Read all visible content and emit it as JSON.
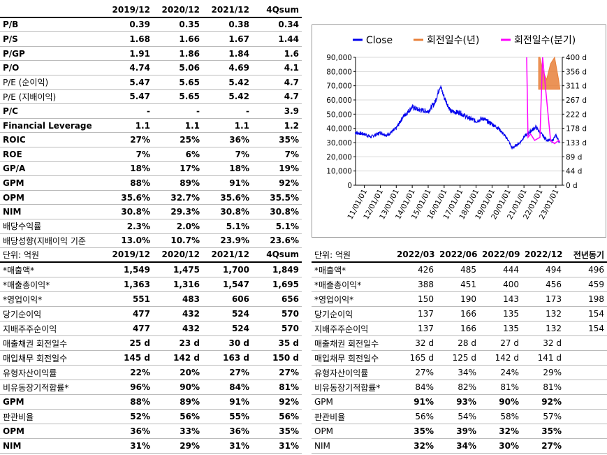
{
  "valuation": {
    "headers": [
      "",
      "2019/12",
      "2020/12",
      "2021/12",
      "4Qsum"
    ],
    "rows": [
      {
        "label": "P/B",
        "values": [
          "0.39",
          "0.35",
          "0.38",
          "0.34"
        ]
      },
      {
        "label": "P/S",
        "values": [
          "1.68",
          "1.66",
          "1.67",
          "1.44"
        ]
      },
      {
        "label": "P/GP",
        "values": [
          "1.91",
          "1.86",
          "1.84",
          "1.6"
        ]
      },
      {
        "label": "P/O",
        "values": [
          "4.74",
          "5.06",
          "4.69",
          "4.1"
        ]
      },
      {
        "label": "P/E (순이익)",
        "values": [
          "5.47",
          "5.65",
          "5.42",
          "4.7"
        ]
      },
      {
        "label": "P/E (지배이익)",
        "values": [
          "5.47",
          "5.65",
          "5.42",
          "4.7"
        ]
      },
      {
        "label": "P/C",
        "values": [
          "-",
          "-",
          "-",
          "3.9"
        ]
      },
      {
        "label": "Financial Leverage",
        "values": [
          "1.1",
          "1.1",
          "1.1",
          "1.2"
        ]
      },
      {
        "label": "ROIC",
        "values": [
          "27%",
          "25%",
          "36%",
          "35%"
        ]
      },
      {
        "label": "ROE",
        "values": [
          "7%",
          "6%",
          "7%",
          "7%"
        ]
      },
      {
        "label": "GP/A",
        "values": [
          "18%",
          "17%",
          "18%",
          "19%"
        ]
      },
      {
        "label": "GPM",
        "values": [
          "88%",
          "89%",
          "91%",
          "92%"
        ]
      },
      {
        "label": "OPM",
        "values": [
          "35.6%",
          "32.7%",
          "35.6%",
          "35.5%"
        ]
      },
      {
        "label": "NIM",
        "values": [
          "30.8%",
          "29.3%",
          "30.8%",
          "30.8%"
        ]
      },
      {
        "label": "배당수익률",
        "values": [
          "2.3%",
          "2.0%",
          "5.1%",
          "5.1%"
        ]
      },
      {
        "label": "배당성향(지배이익 기준",
        "values": [
          "13.0%",
          "10.7%",
          "23.9%",
          "23.6%"
        ]
      }
    ]
  },
  "annual": {
    "headers": [
      "단위: 억원",
      "2019/12",
      "2020/12",
      "2021/12",
      "4Qsum"
    ],
    "rows": [
      {
        "label": "*매출액*",
        "values": [
          "1,549",
          "1,475",
          "1,700",
          "1,849"
        ]
      },
      {
        "label": "*매출총이익*",
        "values": [
          "1,363",
          "1,316",
          "1,547",
          "1,695"
        ]
      },
      {
        "label": "*영업이익*",
        "values": [
          "551",
          "483",
          "606",
          "656"
        ]
      },
      {
        "label": "당기순이익",
        "values": [
          "477",
          "432",
          "524",
          "570"
        ]
      },
      {
        "label": "지배주주순이익",
        "values": [
          "477",
          "432",
          "524",
          "570"
        ]
      },
      {
        "label": "매출채권 회전일수",
        "values": [
          "25 d",
          "23 d",
          "30 d",
          "35 d"
        ]
      },
      {
        "label": "매입채무 회전일수",
        "values": [
          "145 d",
          "142 d",
          "163 d",
          "150 d"
        ]
      },
      {
        "label": "유형자산이익률",
        "values": [
          "22%",
          "20%",
          "27%",
          "27%"
        ]
      },
      {
        "label": "비유동장기적합률*",
        "values": [
          "96%",
          "90%",
          "84%",
          "81%"
        ]
      },
      {
        "label": "GPM",
        "values": [
          "88%",
          "89%",
          "91%",
          "92%"
        ]
      },
      {
        "label": "판관비율",
        "values": [
          "52%",
          "56%",
          "55%",
          "56%"
        ]
      },
      {
        "label": "OPM",
        "values": [
          "36%",
          "33%",
          "36%",
          "35%"
        ]
      },
      {
        "label": "NIM",
        "values": [
          "31%",
          "29%",
          "31%",
          "31%"
        ]
      }
    ]
  },
  "quarterly": {
    "headers": [
      "단위: 억원",
      "2022/03",
      "2022/06",
      "2022/09",
      "2022/12",
      "전년동기"
    ],
    "rows": [
      {
        "label": "*매출액*",
        "values": [
          "426",
          "485",
          "444",
          "494",
          "496"
        ]
      },
      {
        "label": "*매출총이익*",
        "values": [
          "388",
          "451",
          "400",
          "456",
          "459"
        ]
      },
      {
        "label": "*영업이익*",
        "values": [
          "150",
          "190",
          "143",
          "173",
          "198"
        ]
      },
      {
        "label": "당기순이익",
        "values": [
          "137",
          "166",
          "135",
          "132",
          "154"
        ]
      },
      {
        "label": "지배주주순이익",
        "values": [
          "137",
          "166",
          "135",
          "132",
          "154"
        ]
      },
      {
        "label": "매출채권 회전일수",
        "values": [
          "32 d",
          "28 d",
          "27 d",
          "32 d",
          ""
        ]
      },
      {
        "label": "매입채무 회전일수",
        "values": [
          "165 d",
          "125 d",
          "142 d",
          "141 d",
          ""
        ]
      },
      {
        "label": "유형자산이익률",
        "values": [
          "27%",
          "34%",
          "24%",
          "29%",
          ""
        ]
      },
      {
        "label": "비유동장기적합률*",
        "values": [
          "84%",
          "82%",
          "81%",
          "81%",
          ""
        ]
      },
      {
        "label": "GPM",
        "values": [
          "91%",
          "93%",
          "90%",
          "92%",
          ""
        ]
      },
      {
        "label": "판관비율",
        "values": [
          "56%",
          "54%",
          "58%",
          "57%",
          ""
        ]
      },
      {
        "label": "OPM",
        "values": [
          "35%",
          "39%",
          "32%",
          "35%",
          ""
        ]
      },
      {
        "label": "NIM",
        "values": [
          "32%",
          "34%",
          "30%",
          "27%",
          ""
        ]
      }
    ]
  },
  "chart_data": {
    "type": "line",
    "title": "",
    "legend_placement": "top",
    "series": [
      {
        "name": "Close",
        "axis": "left",
        "color": "#0000ee",
        "x": [
          "2010/06",
          "2011/01",
          "2011/06",
          "2012/01",
          "2012/06",
          "2013/01",
          "2013/06",
          "2014/01",
          "2014/06",
          "2015/01",
          "2015/06",
          "2015/10",
          "2016/01",
          "2016/06",
          "2017/01",
          "2017/06",
          "2018/01",
          "2018/06",
          "2019/01",
          "2019/06",
          "2020/01",
          "2020/04",
          "2020/10",
          "2021/01",
          "2021/06",
          "2021/10",
          "2022/01",
          "2022/06",
          "2022/10",
          "2023/01",
          "2023/04"
        ],
        "y": [
          37000,
          36000,
          34000,
          37000,
          35000,
          40000,
          48000,
          55000,
          53000,
          52000,
          58000,
          70000,
          62000,
          52000,
          51000,
          48000,
          45000,
          47000,
          43000,
          40000,
          32000,
          26000,
          30000,
          34000,
          38000,
          41000,
          37000,
          32000,
          31000,
          35000,
          30000
        ]
      },
      {
        "name": "회전일수(년)",
        "axis": "right",
        "color": "#e8803a",
        "x": [
          "2021/12",
          "2022/01",
          "2022/03",
          "2022/06",
          "2022/09",
          "2022/12",
          "2023/03",
          "2023/04"
        ],
        "y": [
          400,
          400,
          360,
          330,
          380,
          400,
          330,
          300
        ]
      },
      {
        "name": "회전일수(분기)",
        "axis": "right",
        "color": "#ff00ff",
        "x": [
          "2021/03",
          "2021/04",
          "2021/06",
          "2021/09",
          "2022/01",
          "2022/03",
          "2022/09",
          "2022/12",
          "2023/03",
          "2023/04"
        ],
        "y": [
          400,
          150,
          160,
          140,
          150,
          400,
          140,
          130,
          140,
          135
        ]
      }
    ],
    "left_axis": {
      "ylim": [
        0,
        90000
      ],
      "ticks": [
        "0",
        "10,000",
        "20,000",
        "30,000",
        "40,000",
        "50,000",
        "60,000",
        "70,000",
        "80,000",
        "90,000"
      ]
    },
    "right_axis": {
      "ylim": [
        0,
        400
      ],
      "ticks": [
        "0 d",
        "44 d",
        "89 d",
        "133 d",
        "178 d",
        "222 d",
        "267 d",
        "311 d",
        "356 d",
        "400 d"
      ]
    },
    "x_ticks": [
      "11/01/01",
      "12/01/01",
      "13/01/01",
      "14/01/01",
      "15/01/01",
      "16/01/01",
      "17/01/01",
      "18/01/01",
      "19/01/01",
      "20/01/01",
      "21/01/01",
      "22/01/01",
      "23/01/01"
    ],
    "grid": true
  }
}
